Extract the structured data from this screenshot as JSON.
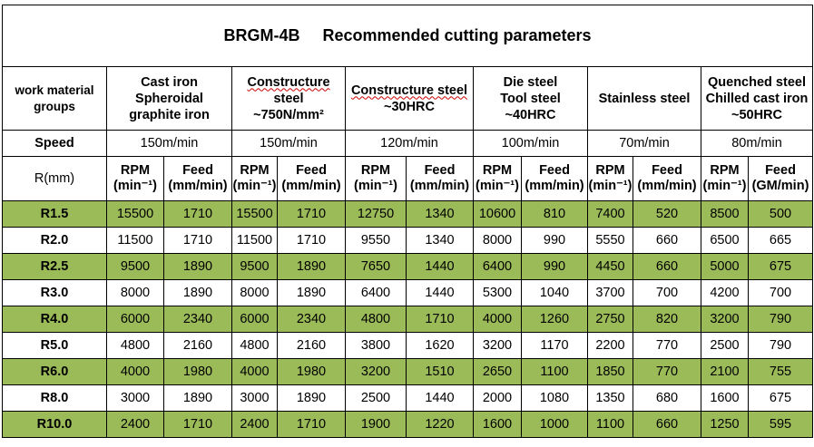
{
  "title": {
    "code": "BRGM-4B",
    "text": "Recommended cutting parameters"
  },
  "materials": {
    "label": "work material groups",
    "groups": [
      {
        "name": [
          "Cast iron",
          "Spheroidal",
          "graphite iron"
        ],
        "speed": "150m/min"
      },
      {
        "name": [
          "Constructure",
          "steel",
          "~750N/mm²"
        ],
        "speed": "150m/min"
      },
      {
        "name": [
          "Constructure steel",
          "~30HRC"
        ],
        "speed": "120m/min"
      },
      {
        "name": [
          "Die steel",
          "Tool steel",
          "~40HRC"
        ],
        "speed": "100m/min"
      },
      {
        "name": [
          "Stainless steel"
        ],
        "speed": "70m/min"
      },
      {
        "name": [
          "Quenched steel",
          "Chilled cast iron",
          "~50HRC"
        ],
        "speed": "80m/min"
      }
    ]
  },
  "speed_label": "Speed",
  "r_label": "R(mm)",
  "units": {
    "rpm": [
      "RPM",
      "(min⁻¹)"
    ],
    "feed": [
      "Feed",
      "(mm/min)"
    ],
    "feed_last": [
      "Feed",
      "(GM/min)"
    ]
  },
  "rows": [
    {
      "r": "R1.5",
      "values": [
        "15500",
        "1710",
        "15500",
        "1710",
        "12750",
        "1340",
        "10600",
        "810",
        "7400",
        "520",
        "8500",
        "500"
      ]
    },
    {
      "r": "R2.0",
      "values": [
        "11500",
        "1710",
        "11500",
        "1710",
        "9550",
        "1340",
        "8000",
        "990",
        "5550",
        "660",
        "6500",
        "665"
      ]
    },
    {
      "r": "R2.5",
      "values": [
        "9500",
        "1890",
        "9500",
        "1890",
        "7650",
        "1440",
        "6400",
        "990",
        "4450",
        "660",
        "5000",
        "675"
      ]
    },
    {
      "r": "R3.0",
      "values": [
        "8000",
        "1890",
        "8000",
        "1890",
        "6400",
        "1440",
        "5300",
        "1040",
        "3700",
        "700",
        "4200",
        "700"
      ]
    },
    {
      "r": "R4.0",
      "values": [
        "6000",
        "2340",
        "6000",
        "2340",
        "4800",
        "1710",
        "4000",
        "1260",
        "2750",
        "820",
        "3200",
        "790"
      ]
    },
    {
      "r": "R5.0",
      "values": [
        "4800",
        "2160",
        "4800",
        "2160",
        "3800",
        "1620",
        "3200",
        "1170",
        "2200",
        "770",
        "2500",
        "790"
      ]
    },
    {
      "r": "R6.0",
      "values": [
        "4000",
        "1980",
        "4000",
        "1980",
        "3200",
        "1510",
        "2650",
        "1100",
        "1850",
        "770",
        "2100",
        "755"
      ]
    },
    {
      "r": "R8.0",
      "values": [
        "3000",
        "1890",
        "3000",
        "1890",
        "2500",
        "1440",
        "2000",
        "1080",
        "1350",
        "680",
        "1600",
        "675"
      ]
    },
    {
      "r": "R10.0",
      "values": [
        "2400",
        "1710",
        "2400",
        "1710",
        "1900",
        "1220",
        "1600",
        "1000",
        "1100",
        "660",
        "1250",
        "595"
      ]
    }
  ],
  "colors": {
    "green_row": "#9bbb59",
    "white_row": "#ffffff",
    "border": "#000000"
  }
}
